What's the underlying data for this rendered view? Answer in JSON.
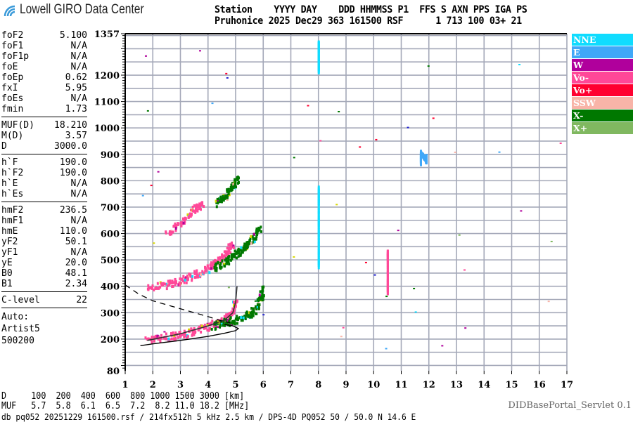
{
  "logo": {
    "text": "Lowell GIRO Data Center",
    "icon": "wifi-signal-icon",
    "color": "#3a9ad9"
  },
  "header": {
    "line1": "Station    YYYY DAY    DDD HHMMSS P1  FFS S AXN PPS IGA PS",
    "line2": "Pruhonice 2025 Dec29 363 161500 RSF      1 713 100 03+ 21"
  },
  "parameters": {
    "groups": [
      [
        [
          "foF2",
          "5.100"
        ],
        [
          "foF1",
          "N/A"
        ],
        [
          "foF1p",
          "N/A"
        ],
        [
          "foE",
          "N/A"
        ],
        [
          "foEp",
          "0.62"
        ],
        [
          "fxI",
          "5.95"
        ],
        [
          "foEs",
          "N/A"
        ],
        [
          "fmin",
          "1.73"
        ]
      ],
      [
        [
          "MUF(D)",
          "18.210"
        ],
        [
          "M(D)",
          "3.57"
        ],
        [
          "D",
          "3000.0"
        ]
      ],
      [
        [
          "h`F",
          "190.0"
        ],
        [
          "h`F2",
          "190.0"
        ],
        [
          "h`E",
          "N/A"
        ],
        [
          "h`Es",
          "N/A"
        ]
      ],
      [
        [
          "hmF2",
          "236.5"
        ],
        [
          "hmF1",
          "N/A"
        ],
        [
          "hmE",
          "110.0"
        ],
        [
          "yF2",
          "50.1"
        ],
        [
          "yF1",
          "N/A"
        ],
        [
          "yE",
          "20.0"
        ],
        [
          "B0",
          "48.1"
        ],
        [
          "B1",
          "2.34"
        ]
      ],
      [
        [
          "C-level",
          "22"
        ]
      ]
    ],
    "auto": [
      "Auto:",
      "Artist5",
      "500200"
    ]
  },
  "legend": [
    {
      "label": "NNE",
      "color": "#10dcff"
    },
    {
      "label": "E",
      "color": "#40a8f8"
    },
    {
      "label": "W",
      "color": "#b0009c"
    },
    {
      "label": "Vo-",
      "color": "#ff4898"
    },
    {
      "label": "Vo+",
      "color": "#ff0030"
    },
    {
      "label": "SSW",
      "color": "#f8b4a8"
    },
    {
      "label": "X-",
      "color": "#007800"
    },
    {
      "label": "X+",
      "color": "#80b860"
    }
  ],
  "bottom": {
    "d_row": "D     100  200  400  600  800 1000 1500 3000 [km]",
    "muf_row": "MUF   5.7  5.8  6.1  6.5  7.2  8.2 11.0 18.2 [MHz]",
    "info": "db pq052 20251229 161500.rsf / 214fx512h 5 kHz 2.5 km / DPS-4D PQ052 50 / 50.0 N 14.6 E",
    "servlet": "DIDBasePortal_Servlet 0.1"
  },
  "chart_data": {
    "type": "scatter",
    "xlim": [
      1,
      17
    ],
    "ylim": [
      80,
      1357
    ],
    "x_ticks": [
      "1",
      "2",
      "3",
      "4",
      "5",
      "6",
      "7",
      "8",
      "9",
      "10",
      "11",
      "12",
      "13",
      "14",
      "15",
      "16",
      "17"
    ],
    "y_ticks": [
      "1357",
      "1200",
      "1100",
      "1000",
      "900",
      "800",
      "700",
      "600",
      "500",
      "400",
      "300",
      "200",
      "80"
    ],
    "grid": true,
    "legend_placement": "right",
    "traces": [
      {
        "mode": "Vo-",
        "points": [
          [
            1.8,
            193
          ],
          [
            2.5,
            205
          ],
          [
            3,
            215
          ],
          [
            3.5,
            228
          ],
          [
            4,
            248
          ],
          [
            4.4,
            265
          ],
          [
            4.7,
            285
          ],
          [
            4.9,
            310
          ],
          [
            5.0,
            340
          ]
        ]
      },
      {
        "mode": "X-",
        "points": [
          [
            4.2,
            248
          ],
          [
            4.6,
            262
          ],
          [
            5.0,
            272
          ],
          [
            5.4,
            288
          ],
          [
            5.7,
            310
          ],
          [
            5.9,
            350
          ],
          [
            6.0,
            390
          ]
        ]
      },
      {
        "mode": "Vo-",
        "points": [
          [
            1.8,
            392
          ],
          [
            2.5,
            405
          ],
          [
            3,
            420
          ],
          [
            3.5,
            440
          ],
          [
            4,
            465
          ],
          [
            4.4,
            495
          ],
          [
            4.7,
            530
          ],
          [
            4.9,
            560
          ]
        ]
      },
      {
        "mode": "X-",
        "points": [
          [
            4.2,
            470
          ],
          [
            4.6,
            490
          ],
          [
            5,
            520
          ],
          [
            5.3,
            545
          ],
          [
            5.6,
            575
          ],
          [
            5.9,
            620
          ]
        ]
      },
      {
        "mode": "Vo-",
        "points": [
          [
            2.5,
            600
          ],
          [
            3,
            640
          ],
          [
            3.5,
            690
          ],
          [
            3.8,
            710
          ]
        ]
      },
      {
        "mode": "X-",
        "points": [
          [
            4.3,
            710
          ],
          [
            4.6,
            740
          ],
          [
            4.9,
            780
          ],
          [
            5.1,
            810
          ]
        ]
      },
      {
        "mode": "NNE",
        "points": [
          [
            8.0,
            480
          ],
          [
            8.0,
            560
          ],
          [
            8.0,
            640
          ],
          [
            8.0,
            720
          ],
          [
            8.0,
            780
          ]
        ]
      },
      {
        "mode": "NNE",
        "points": [
          [
            8.0,
            1220
          ],
          [
            8.0,
            1260
          ],
          [
            8.0,
            1300
          ],
          [
            8.0,
            1330
          ]
        ]
      },
      {
        "mode": "Vo-",
        "points": [
          [
            10.5,
            380
          ],
          [
            10.5,
            430
          ],
          [
            10.5,
            500
          ],
          [
            10.5,
            540
          ]
        ]
      },
      {
        "mode": "E",
        "points": [
          [
            11.7,
            870
          ],
          [
            11.7,
            890
          ],
          [
            11.7,
            910
          ],
          [
            11.9,
            880
          ],
          [
            11.9,
            900
          ]
        ]
      }
    ],
    "profile_solid": [
      [
        1.55,
        175
      ],
      [
        2,
        182
      ],
      [
        3,
        195
      ],
      [
        4,
        210
      ],
      [
        4.6,
        222
      ],
      [
        5.0,
        232
      ],
      [
        5.1,
        240
      ],
      [
        4.9,
        250
      ],
      [
        4.6,
        255
      ]
    ],
    "profile_upper": [
      [
        1.8,
        195
      ],
      [
        3,
        220
      ],
      [
        4,
        250
      ],
      [
        4.6,
        272
      ],
      [
        4.9,
        300
      ],
      [
        5.0,
        340
      ],
      [
        5.05,
        400
      ]
    ],
    "profile_dashed": [
      [
        1.0,
        405
      ],
      [
        1.5,
        370
      ],
      [
        2,
        345
      ],
      [
        3,
        315
      ],
      [
        4,
        285
      ],
      [
        4.5,
        268
      ],
      [
        4.8,
        262
      ]
    ]
  }
}
